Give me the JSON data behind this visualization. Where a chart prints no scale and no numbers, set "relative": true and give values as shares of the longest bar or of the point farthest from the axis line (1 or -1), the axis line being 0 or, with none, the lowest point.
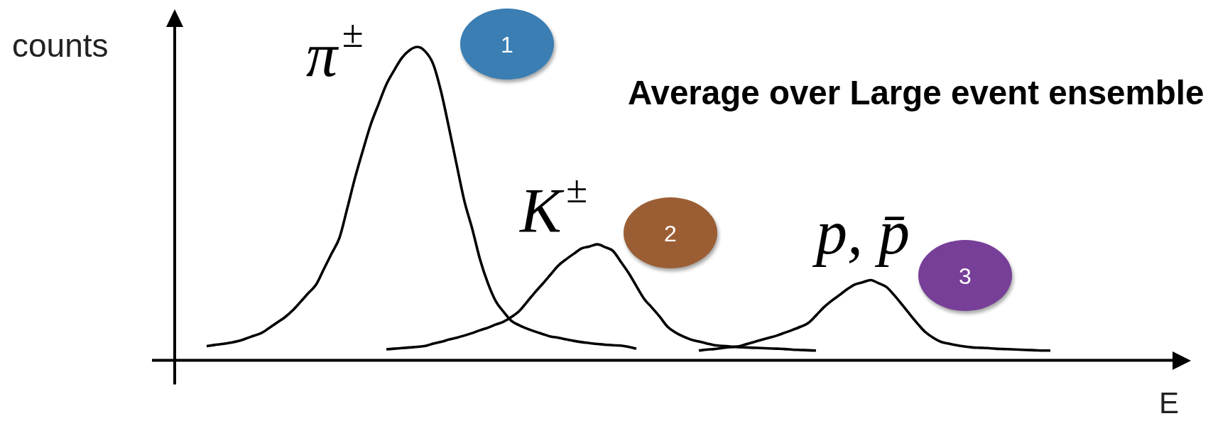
{
  "chart_data": {
    "type": "line",
    "relative": true,
    "xlabel": "E",
    "ylabel": "counts",
    "annotations": [
      "Average over Large event ensemble",
      "1",
      "2",
      "3"
    ],
    "categories": [
      null,
      null,
      null,
      null,
      null,
      null,
      null,
      null,
      null,
      null,
      null,
      null,
      null,
      null,
      null,
      null,
      null,
      null,
      null,
      null,
      null,
      null,
      null,
      null,
      null,
      null,
      null,
      null,
      null,
      null,
      null,
      null,
      null,
      null,
      null,
      null,
      null,
      null,
      null,
      null,
      null,
      null,
      null,
      null,
      null,
      null,
      null,
      null,
      null,
      null,
      null,
      null,
      null,
      null,
      null,
      null,
      null,
      null,
      null,
      null,
      null,
      null,
      null,
      null,
      null,
      null,
      null,
      null,
      null,
      null,
      null,
      null,
      null,
      null,
      null,
      null,
      null,
      null,
      null,
      null,
      null,
      null,
      null,
      null,
      null,
      null,
      null,
      null,
      null,
      null,
      null,
      null,
      null,
      null,
      null,
      null,
      null,
      null,
      null,
      null,
      null,
      null,
      null,
      null,
      null,
      null,
      null,
      null,
      null,
      null,
      null,
      null,
      null,
      null,
      null,
      null,
      null,
      null,
      null,
      null,
      null,
      null,
      null,
      null,
      null,
      null,
      null,
      null,
      null,
      null,
      null,
      null,
      null,
      null
    ],
    "series": [
      {
        "name": "π$^{±}$",
        "color": "#000000",
        "values": [
          null,
          null,
          null,
          null,
          null,
          null,
          null,
          0.045,
          0.049,
          0.052,
          0.056,
          0.061,
          0.069,
          0.078,
          0.087,
          0.103,
          0.12,
          0.137,
          0.159,
          0.186,
          0.214,
          0.241,
          0.291,
          0.341,
          0.391,
          0.485,
          0.583,
          0.67,
          0.752,
          0.817,
          0.88,
          0.925,
          0.965,
          0.99,
          1,
          0.985,
          0.945,
          0.858,
          0.744,
          0.624,
          0.507,
          0.419,
          0.321,
          0.246,
          0.189,
          0.155,
          0.126,
          0.112,
          0.101,
          0.092,
          0.084,
          0.076,
          0.072,
          0.067,
          0.062,
          0.058,
          0.055,
          0.052,
          0.05,
          0.048,
          0.047,
          0.043,
          0.037,
          null,
          null,
          null,
          null,
          null,
          null,
          null,
          null,
          null,
          null,
          null,
          null,
          null,
          null,
          null,
          null,
          null,
          null,
          null,
          null,
          null,
          null,
          null,
          null,
          null,
          null,
          null,
          null,
          null,
          null,
          null,
          null,
          null,
          null,
          null,
          null,
          null,
          null,
          null,
          null,
          null,
          null,
          null,
          null,
          null,
          null,
          null,
          null,
          null,
          null,
          null,
          null,
          null,
          null,
          null,
          null,
          null,
          null,
          null,
          null,
          null,
          null,
          null,
          null,
          null,
          null,
          null,
          null,
          null,
          null,
          null
        ]
      },
      {
        "name": "K$^{±}$",
        "color": "#000000",
        "values": [
          null,
          null,
          null,
          null,
          null,
          null,
          null,
          null,
          null,
          null,
          null,
          null,
          null,
          null,
          null,
          null,
          null,
          null,
          null,
          null,
          null,
          null,
          null,
          null,
          null,
          null,
          null,
          null,
          null,
          null,
          0.035,
          0.037,
          0.039,
          0.041,
          0.043,
          0.046,
          0.053,
          0.059,
          0.066,
          0.072,
          0.079,
          0.087,
          0.096,
          0.104,
          0.114,
          0.123,
          0.138,
          0.157,
          0.186,
          0.216,
          0.244,
          0.273,
          0.302,
          0.322,
          0.34,
          0.357,
          0.363,
          0.37,
          0.361,
          0.349,
          0.315,
          0.279,
          0.237,
          0.196,
          0.168,
          0.139,
          0.107,
          0.089,
          0.076,
          0.066,
          0.06,
          0.054,
          0.048,
          0.046,
          0.044,
          0.042,
          0.041,
          0.04,
          0.039,
          0.038,
          0.037,
          0.036,
          0.034,
          0.033,
          0.032,
          0.031,
          null,
          null,
          null,
          null,
          null,
          null,
          null,
          null,
          null,
          null,
          null,
          null,
          null,
          null,
          null,
          null,
          null,
          null,
          null,
          null,
          null,
          null,
          null,
          null,
          null,
          null,
          null,
          null,
          null,
          null,
          null,
          null,
          null,
          null,
          null,
          null,
          null,
          null,
          null,
          null,
          null,
          null,
          null,
          null,
          null,
          null,
          null,
          null
        ]
      },
      {
        "name": "p, p̄",
        "color": "#000000",
        "values": [
          null,
          null,
          null,
          null,
          null,
          null,
          null,
          null,
          null,
          null,
          null,
          null,
          null,
          null,
          null,
          null,
          null,
          null,
          null,
          null,
          null,
          null,
          null,
          null,
          null,
          null,
          null,
          null,
          null,
          null,
          null,
          null,
          null,
          null,
          null,
          null,
          null,
          null,
          null,
          null,
          null,
          null,
          null,
          null,
          null,
          null,
          null,
          null,
          null,
          null,
          null,
          null,
          null,
          null,
          null,
          null,
          null,
          null,
          null,
          null,
          null,
          null,
          null,
          null,
          null,
          null,
          null,
          null,
          null,
          null,
          0.031,
          0.034,
          0.036,
          0.039,
          0.042,
          0.044,
          0.051,
          0.058,
          0.065,
          0.072,
          0.079,
          0.088,
          0.097,
          0.107,
          0.119,
          0.143,
          0.169,
          0.19,
          0.208,
          0.227,
          0.242,
          0.249,
          0.256,
          0.246,
          0.234,
          0.208,
          0.178,
          0.147,
          0.117,
          0.09,
          0.072,
          0.059,
          0.053,
          0.048,
          0.044,
          0.041,
          0.04,
          0.039,
          0.037,
          0.036,
          0.035,
          0.034,
          0.033,
          0.032,
          0.031,
          0.031,
          null,
          null,
          null,
          null,
          null,
          null,
          null,
          null,
          null,
          null,
          null,
          null,
          null,
          null,
          null,
          null,
          null,
          null
        ]
      }
    ]
  }
}
